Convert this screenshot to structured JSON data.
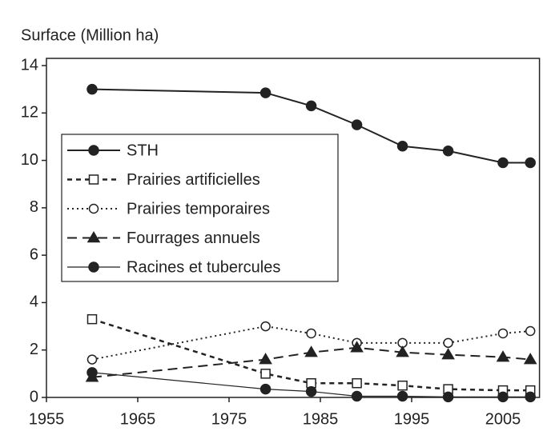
{
  "chart_data": {
    "type": "line",
    "y_label": "Surface (Million ha)",
    "xlim": [
      1955,
      2009
    ],
    "xticks": [
      1955,
      1965,
      1975,
      1985,
      1995,
      2005
    ],
    "ylim": [
      0,
      14
    ],
    "yticks": [
      0,
      2,
      4,
      6,
      8,
      10,
      12,
      14
    ],
    "grid": false,
    "legend": "left",
    "series": [
      {
        "name": "STH",
        "color": "#222222",
        "dash": "solid",
        "marker": "filled-circle",
        "x": [
          1960,
          1979,
          1984,
          1989,
          1994,
          1999,
          2005,
          2008
        ],
        "values": [
          13.0,
          12.85,
          12.3,
          11.5,
          10.6,
          10.4,
          9.9,
          9.9
        ]
      },
      {
        "name": "Prairies artificielles",
        "color": "#222222",
        "dash": "dashed",
        "marker": "open-square",
        "x": [
          1960,
          1979,
          1984,
          1989,
          1994,
          1999,
          2005,
          2008
        ],
        "values": [
          3.3,
          1.0,
          0.6,
          0.6,
          0.5,
          0.35,
          0.3,
          0.3
        ]
      },
      {
        "name": "Prairies temporaires",
        "color": "#222222",
        "dash": "dash-dot",
        "marker": "open-circle",
        "x": [
          1960,
          1979,
          1984,
          1989,
          1994,
          1999,
          2005,
          2008
        ],
        "values": [
          1.6,
          3.0,
          2.7,
          2.3,
          2.3,
          2.3,
          2.7,
          2.8
        ]
      },
      {
        "name": "Fourrages annuels",
        "color": "#222222",
        "dash": "long-dash",
        "marker": "filled-triangle",
        "x": [
          1960,
          1979,
          1984,
          1989,
          1994,
          1999,
          2005,
          2008
        ],
        "values": [
          0.85,
          1.6,
          1.9,
          2.1,
          1.9,
          1.8,
          1.7,
          1.6
        ]
      },
      {
        "name": "Racines et tubercules",
        "color": "#222222",
        "dash": "thin",
        "marker": "filled-circle",
        "x": [
          1960,
          1979,
          1984,
          1989,
          1994,
          1999,
          2005,
          2008
        ],
        "values": [
          1.05,
          0.35,
          0.25,
          0.05,
          0.05,
          0.02,
          0.02,
          0.02
        ]
      }
    ]
  }
}
